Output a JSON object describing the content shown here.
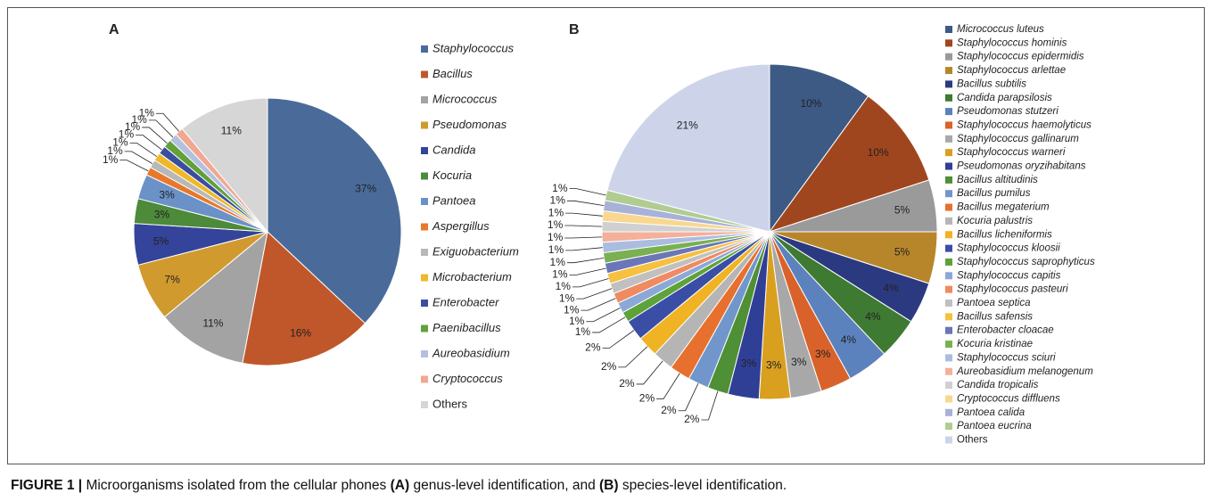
{
  "chart_data": [
    {
      "type": "pie",
      "label": "A",
      "categories": [
        "Staphylococcus",
        "Bacillus",
        "Micrococcus",
        "Pseudomonas",
        "Candida",
        "Kocuria",
        "Pantoea",
        "Aspergillus",
        "Exiguobacterium",
        "Microbacterium",
        "Enterobacter",
        "Paenibacillus",
        "Aureobasidium",
        "Cryptococcus",
        "Others"
      ],
      "values": [
        37,
        16,
        11,
        7,
        5,
        3,
        3,
        1,
        1,
        1,
        1,
        1,
        1,
        1,
        11
      ],
      "value_labels": [
        "37%",
        "16%",
        "11%",
        "7%",
        "5%",
        "3%",
        "3%",
        "1%",
        "1%",
        "1%",
        "1%",
        "1%",
        "1%",
        "1%",
        "11%"
      ],
      "colors": [
        "#4a6b9a",
        "#c0572a",
        "#a3a3a3",
        "#d19a2e",
        "#34449a",
        "#4d8a3a",
        "#6a92c8",
        "#e8782a",
        "#b8b8b8",
        "#f0b828",
        "#3a4ea0",
        "#62a03a",
        "#b4c0e0",
        "#f0a890",
        "#d6d6d6"
      ]
    },
    {
      "type": "pie",
      "label": "B",
      "categories": [
        "Micrococcus luteus",
        "Staphylococcus hominis",
        "Staphylococcus epidermidis",
        "Staphylococcus arlettae",
        "Bacillus subtilis",
        "Candida parapsilosis",
        "Pseudomonas stutzeri",
        "Staphylococcus haemolyticus",
        "Staphylococcus gallinarum",
        "Staphylococcus warneri",
        "Pseudomonas oryzihabitans",
        "Bacillus altitudinis",
        "Bacillus pumilus",
        "Bacillus megaterium",
        "Kocuria palustris",
        "Bacillus licheniformis",
        "Staphylococcus kloosii",
        "Staphylococcus saprophyticus",
        "Staphylococcus capitis",
        "Staphylococcus pasteuri",
        "Pantoea septica",
        "Bacillus safensis",
        "Enterobacter cloacae",
        "Kocuria kristinae",
        "Staphylococcus sciuri",
        "Aureobasidium melanogenum",
        "Candida tropicalis",
        "Cryptococcus diffluens",
        "Pantoea calida",
        "Pantoea eucrina",
        "Others"
      ],
      "values": [
        10,
        10,
        5,
        5,
        4,
        4,
        4,
        3,
        3,
        3,
        3,
        2,
        2,
        2,
        2,
        2,
        2,
        1,
        1,
        1,
        1,
        1,
        1,
        1,
        1,
        1,
        1,
        1,
        1,
        1,
        21
      ],
      "value_labels": [
        "10%",
        "10%",
        "5%",
        "5%",
        "4%",
        "4%",
        "4%",
        "3%",
        "3%",
        "3%",
        "3%",
        "2%",
        "2%",
        "2%",
        "2%",
        "2%",
        "2%",
        "1%",
        "1%",
        "1%",
        "1%",
        "1%",
        "1%",
        "1%",
        "1%",
        "1%",
        "1%",
        "1%",
        "1%",
        "1%",
        "21%"
      ],
      "colors": [
        "#3d5a85",
        "#a0461e",
        "#9a9a9a",
        "#b8862a",
        "#2b3a80",
        "#3e7a32",
        "#5b82bd",
        "#d9622a",
        "#a8a8a8",
        "#d9a020",
        "#2f3f96",
        "#4f8f35",
        "#7196cc",
        "#e8702e",
        "#b5b5b5",
        "#f0b323",
        "#3a4ea6",
        "#5ea33a",
        "#8aa8d8",
        "#f08a60",
        "#c0c0c0",
        "#f6c040",
        "#6a76b8",
        "#7ab050",
        "#aabde0",
        "#f4b09a",
        "#d0d0d0",
        "#f8d890",
        "#a8b2d8",
        "#b0cc90",
        "#cdd4ea"
      ]
    }
  ],
  "caption": {
    "label": "FIGURE 1 |",
    "text1": "Microorganisms isolated from the cellular phones",
    "a": "(A)",
    "text2": "genus-level identification, and",
    "b": "(B)",
    "text3": "species-level identification."
  }
}
